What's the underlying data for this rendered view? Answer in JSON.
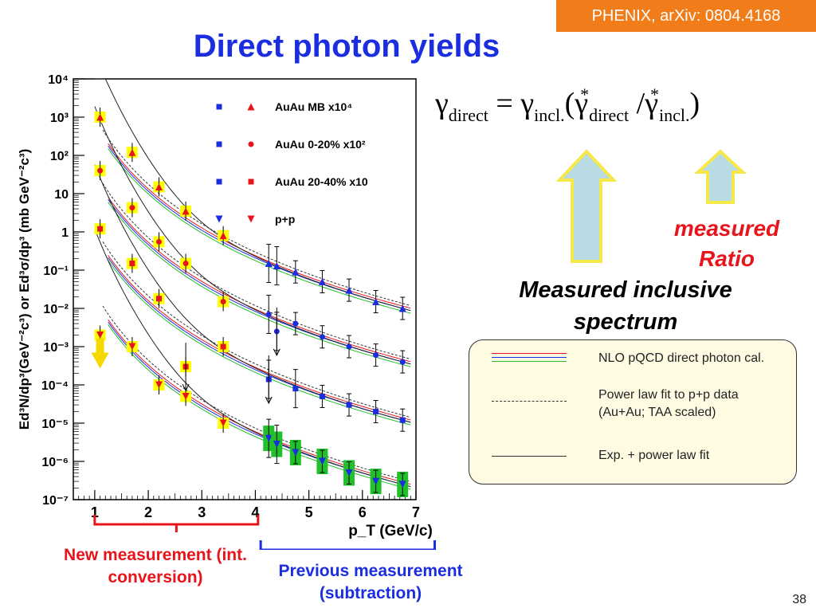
{
  "header": {
    "badge": "PHENIX, arXiv: 0804.4168",
    "title": "Direct photon yields"
  },
  "formula": {
    "gamma": "γ",
    "direct": "direct",
    "incl": "incl.",
    "equals": "=",
    "star": "*",
    "open_paren": "(",
    "slash": "/",
    "close_paren": ")"
  },
  "annotations": {
    "measured_ratio": "measured Ratio",
    "measured_inclusive": "Measured inclusive spectrum",
    "new_measurement": "New measurement (int. conversion)",
    "previous_measurement": "Previous measurement (subtraction)"
  },
  "legend_box": {
    "nlo": "NLO pQCD direct photon cal.",
    "power_law": "Power law fit to p+p data\n(Au+Au; TAA scaled)",
    "exp_power": "Exp. + power law fit"
  },
  "colors": {
    "badge": "#f07c1a",
    "title": "#1a2ee0",
    "red": "#e8141b",
    "blue": "#1a2ee0",
    "green": "#22c02a",
    "yellow": "#ffff00",
    "arrow_fill": "#b9dbe4",
    "arrow_stroke": "#f5e84a"
  },
  "page_number": "38",
  "chart_data": {
    "type": "scatter",
    "xlabel": "p_T (GeV/c)",
    "ylabel": "Ed³N/dp³(GeV⁻²c³) or Ed³σ/dp³ (mb GeV⁻²c³)",
    "xlim": [
      0.6,
      7.0
    ],
    "ylim_log10": [
      -7,
      4
    ],
    "y_log": true,
    "x_ticks": [
      "1",
      "2",
      "3",
      "4",
      "5",
      "6",
      "7"
    ],
    "y_ticks": [
      "10⁻⁷",
      "10⁻⁶",
      "10⁻⁵",
      "10⁻⁴",
      "10⁻³",
      "10⁻²",
      "10⁻¹",
      "1",
      "10",
      "10²",
      "10³",
      "10⁴"
    ],
    "legend_position": "top-right",
    "series": [
      {
        "name": "AuAu MB x10⁴",
        "marker": "triangle-up",
        "new": {
          "x": [
            1.1,
            1.7,
            2.2,
            2.7,
            3.4
          ],
          "y": [
            1000,
            120,
            15,
            3.5,
            0.8
          ]
        },
        "old": {
          "x": [
            4.25,
            4.4,
            4.75,
            5.25,
            5.75,
            6.25,
            6.75
          ],
          "y": [
            0.15,
            0.13,
            0.09,
            0.05,
            0.03,
            0.015,
            0.01
          ]
        }
      },
      {
        "name": "AuAu 0-20% x10²",
        "marker": "circle",
        "new": {
          "x": [
            1.1,
            1.7,
            2.2,
            2.7,
            3.4
          ],
          "y": [
            40,
            4.3,
            0.55,
            0.15,
            0.015
          ]
        },
        "old": {
          "x": [
            4.25,
            4.4,
            4.75,
            5.25,
            5.75,
            6.25,
            6.75
          ],
          "y": [
            0.007,
            0.0025,
            0.004,
            0.0018,
            0.001,
            0.0006,
            0.0004
          ]
        }
      },
      {
        "name": "AuAu 20-40% x10",
        "marker": "square",
        "new": {
          "x": [
            1.1,
            1.7,
            2.2,
            2.7,
            3.4
          ],
          "y": [
            1.2,
            0.15,
            0.018,
            0.0003,
            0.001
          ]
        },
        "old": {
          "x": [
            4.25,
            4.75,
            5.25,
            5.75,
            6.25,
            6.75
          ],
          "y": [
            0.00014,
            8e-05,
            5e-05,
            3e-05,
            2e-05,
            1.2e-05
          ]
        }
      },
      {
        "name": "p+p",
        "marker": "triangle-down",
        "new": {
          "x": [
            1.1,
            1.7,
            2.2,
            2.7,
            3.4
          ],
          "y": [
            0.002,
            0.001,
            0.0001,
            5e-05,
            1e-05
          ]
        },
        "old": {
          "x": [
            4.25,
            4.4,
            4.75,
            5.25,
            5.75,
            6.25,
            6.75
          ],
          "y": [
            4e-06,
            2.8e-06,
            1.7e-06,
            1e-06,
            5e-07,
            3e-07,
            2.5e-07
          ]
        }
      }
    ]
  }
}
